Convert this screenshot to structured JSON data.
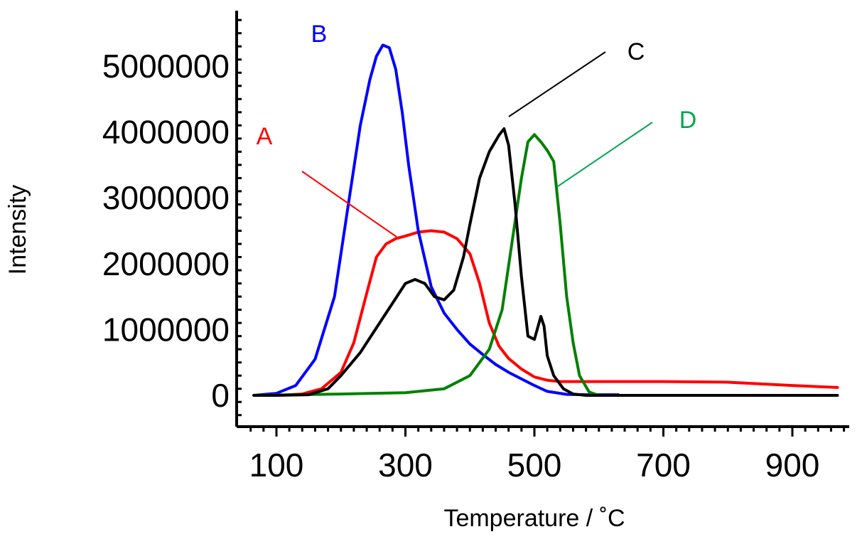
{
  "chart_data": {
    "type": "line",
    "title": "",
    "xlabel": "Temperature  /  ˚C",
    "ylabel": "Intensity",
    "xlim": [
      40,
      1000
    ],
    "ylim": [
      -500000,
      5800000
    ],
    "x_ticks": [
      100,
      300,
      500,
      700,
      900
    ],
    "x_tick_labels": [
      "100",
      "300",
      "500",
      "700",
      "900"
    ],
    "y_ticks": [
      0,
      1000000,
      2000000,
      3000000,
      4000000,
      5000000
    ],
    "y_tick_labels": [
      "0",
      "1000000",
      "2000000",
      "3000000",
      "4000000",
      "5000000"
    ],
    "grid": false,
    "legend": "none",
    "series": [
      {
        "name": "A",
        "color": "#ff0000",
        "x": [
          65,
          100,
          140,
          170,
          200,
          220,
          240,
          255,
          270,
          285,
          300,
          320,
          340,
          360,
          380,
          400,
          415,
          430,
          445,
          460,
          480,
          500,
          520,
          540,
          560,
          600,
          700,
          800,
          900,
          970
        ],
        "y": [
          0,
          0,
          20000,
          100000,
          350000,
          800000,
          1550000,
          2100000,
          2300000,
          2380000,
          2420000,
          2480000,
          2500000,
          2480000,
          2380000,
          2150000,
          1700000,
          1100000,
          750000,
          560000,
          400000,
          280000,
          230000,
          210000,
          210000,
          210000,
          210000,
          200000,
          150000,
          120000
        ]
      },
      {
        "name": "B",
        "color": "#0000ff",
        "x": [
          65,
          100,
          130,
          160,
          190,
          210,
          230,
          245,
          255,
          265,
          275,
          285,
          295,
          305,
          320,
          340,
          360,
          380,
          400,
          420,
          440,
          460,
          480,
          500,
          520,
          550,
          580,
          630
        ],
        "y": [
          0,
          30000,
          150000,
          550000,
          1500000,
          2800000,
          4100000,
          4800000,
          5150000,
          5320000,
          5280000,
          4950000,
          4300000,
          3500000,
          2500000,
          1650000,
          1250000,
          1000000,
          780000,
          620000,
          470000,
          350000,
          250000,
          150000,
          60000,
          15000,
          10000,
          10000
        ]
      },
      {
        "name": "C",
        "color": "#000000",
        "x": [
          65,
          100,
          150,
          180,
          200,
          230,
          260,
          280,
          300,
          315,
          330,
          345,
          360,
          375,
          390,
          400,
          415,
          430,
          445,
          453,
          460,
          470,
          480,
          490,
          500,
          510,
          515,
          520,
          530,
          545,
          560,
          580,
          600,
          970
        ],
        "y": [
          0,
          0,
          10000,
          100000,
          300000,
          650000,
          1100000,
          1400000,
          1700000,
          1760000,
          1700000,
          1500000,
          1450000,
          1600000,
          2100000,
          2600000,
          3300000,
          3700000,
          3950000,
          4050000,
          3800000,
          2900000,
          1800000,
          900000,
          850000,
          1200000,
          1050000,
          600000,
          300000,
          100000,
          20000,
          0,
          0,
          0
        ]
      },
      {
        "name": "D",
        "color": "#008000",
        "x": [
          65,
          200,
          300,
          360,
          400,
          430,
          450,
          465,
          480,
          490,
          500,
          510,
          520,
          530,
          540,
          550,
          560,
          570,
          585,
          600,
          700
        ],
        "y": [
          0,
          20000,
          40000,
          100000,
          300000,
          700000,
          1300000,
          2300000,
          3300000,
          3850000,
          3960000,
          3850000,
          3720000,
          3550000,
          2600000,
          1500000,
          800000,
          300000,
          50000,
          0,
          0
        ]
      }
    ],
    "annotations": [
      {
        "text": "A",
        "color": "#ff0000"
      },
      {
        "text": "B",
        "color": "#0000ff"
      },
      {
        "text": "C",
        "color": "#000000"
      },
      {
        "text": "D",
        "color": "#00a651"
      }
    ]
  }
}
